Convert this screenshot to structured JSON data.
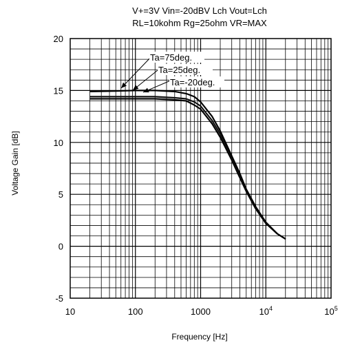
{
  "chart_data": {
    "type": "line",
    "title_lines": [
      "V+=3V Vin=-20dBV Lch Vout=Lch",
      "RL=10kohm Rg=25ohm VR=MAX"
    ],
    "xlabel": "Frequency [Hz]",
    "ylabel": "Voltage Gain [dB]",
    "x_scale": "log",
    "xlim": [
      10,
      100000
    ],
    "ylim": [
      -5,
      20
    ],
    "x_ticks": [
      {
        "value": 10,
        "label": "10",
        "exp": ""
      },
      {
        "value": 100,
        "label": "100",
        "exp": ""
      },
      {
        "value": 1000,
        "label": "1000",
        "exp": ""
      },
      {
        "value": 10000,
        "label": "10",
        "exp": "4"
      },
      {
        "value": 100000,
        "label": "10",
        "exp": "5"
      }
    ],
    "y_ticks": [
      {
        "value": -5,
        "label": "-5"
      },
      {
        "value": 0,
        "label": "0"
      },
      {
        "value": 5,
        "label": "5"
      },
      {
        "value": 10,
        "label": "10"
      },
      {
        "value": 15,
        "label": "15"
      },
      {
        "value": 20,
        "label": "20"
      }
    ],
    "grid": true,
    "series": [
      {
        "name": "Ta=75deg.",
        "points": [
          [
            20,
            14.2
          ],
          [
            50,
            14.2
          ],
          [
            100,
            14.2
          ],
          [
            200,
            14.2
          ],
          [
            400,
            14.1
          ],
          [
            600,
            14.0
          ],
          [
            800,
            13.6
          ],
          [
            1000,
            13.2
          ],
          [
            1500,
            11.8
          ],
          [
            2000,
            10.5
          ],
          [
            3000,
            8.3
          ],
          [
            4000,
            6.6
          ],
          [
            5000,
            5.3
          ],
          [
            7000,
            3.6
          ],
          [
            10000,
            2.2
          ],
          [
            15000,
            1.2
          ],
          [
            20000,
            0.7
          ]
        ]
      },
      {
        "name": "Ta=25deg.",
        "points": [
          [
            20,
            14.4
          ],
          [
            50,
            14.4
          ],
          [
            100,
            14.4
          ],
          [
            200,
            14.4
          ],
          [
            400,
            14.3
          ],
          [
            600,
            14.2
          ],
          [
            800,
            13.9
          ],
          [
            1000,
            13.5
          ],
          [
            1500,
            12.1
          ],
          [
            2000,
            10.8
          ],
          [
            3000,
            8.5
          ],
          [
            4000,
            6.8
          ],
          [
            5000,
            5.4
          ],
          [
            7000,
            3.7
          ],
          [
            10000,
            2.3
          ],
          [
            15000,
            1.2
          ],
          [
            20000,
            0.7
          ]
        ]
      },
      {
        "name": "Ta=-20deg.",
        "points": [
          [
            20,
            14.9
          ],
          [
            50,
            14.95
          ],
          [
            100,
            15.0
          ],
          [
            200,
            15.0
          ],
          [
            400,
            14.9
          ],
          [
            600,
            14.7
          ],
          [
            800,
            14.4
          ],
          [
            1000,
            13.9
          ],
          [
            1500,
            12.5
          ],
          [
            2000,
            11.1
          ],
          [
            3000,
            8.7
          ],
          [
            4000,
            7.0
          ],
          [
            5000,
            5.5
          ],
          [
            7000,
            3.8
          ],
          [
            10000,
            2.3
          ],
          [
            15000,
            1.2
          ],
          [
            20000,
            0.7
          ]
        ]
      }
    ],
    "annotations": [
      {
        "text": "Ta=75deg.",
        "series": 0
      },
      {
        "text": "Ta=25deg.",
        "series": 1
      },
      {
        "text": "Ta=-20deg.",
        "series": 2
      }
    ]
  }
}
